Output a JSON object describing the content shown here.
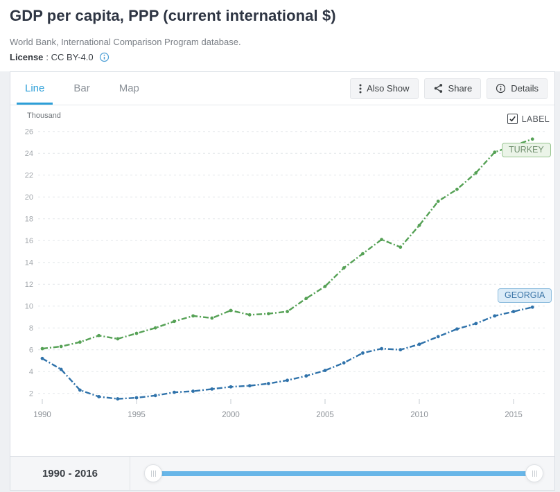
{
  "header": {
    "title": "GDP per capita, PPP (current international $)",
    "source": "World Bank, International Comparison Program database.",
    "license_label": "License",
    "license_value": ": CC BY-4.0"
  },
  "toolbar": {
    "tabs": [
      {
        "label": "Line",
        "active": true
      },
      {
        "label": "Bar",
        "active": false
      },
      {
        "label": "Map",
        "active": false
      }
    ],
    "buttons": [
      {
        "label": "Also Show",
        "icon": "ellipsis-v-icon"
      },
      {
        "label": "Share",
        "icon": "share-icon"
      },
      {
        "label": "Details",
        "icon": "info-icon"
      }
    ]
  },
  "chart": {
    "unit_label": "Thousand",
    "label_toggle": {
      "label": "LABEL",
      "checked": true
    },
    "series_labels": {
      "turkey": "TURKEY",
      "georgia": "GEORGIA"
    }
  },
  "chart_data": {
    "type": "line",
    "title": "GDP per capita, PPP (current international $)",
    "ylabel": "Thousand",
    "x": [
      1990,
      1991,
      1992,
      1993,
      1994,
      1995,
      1996,
      1997,
      1998,
      1999,
      2000,
      2001,
      2002,
      2003,
      2004,
      2005,
      2006,
      2007,
      2008,
      2009,
      2010,
      2011,
      2012,
      2013,
      2014,
      2015,
      2016
    ],
    "series": [
      {
        "name": "TURKEY",
        "color": "#55a155",
        "values": [
          6.1,
          6.3,
          6.7,
          7.3,
          7.0,
          7.5,
          8.0,
          8.6,
          9.1,
          8.9,
          9.6,
          9.2,
          9.3,
          9.5,
          10.7,
          11.8,
          13.5,
          14.8,
          16.1,
          15.4,
          17.4,
          19.6,
          20.7,
          22.2,
          24.1,
          24.7,
          25.3
        ]
      },
      {
        "name": "GEORGIA",
        "color": "#2f72aa",
        "values": [
          5.2,
          4.2,
          2.3,
          1.7,
          1.5,
          1.6,
          1.8,
          2.1,
          2.2,
          2.4,
          2.6,
          2.7,
          2.9,
          3.2,
          3.6,
          4.1,
          4.8,
          5.7,
          6.1,
          6.0,
          6.5,
          7.2,
          7.9,
          8.4,
          9.1,
          9.5,
          9.9
        ]
      }
    ],
    "yticks": [
      2,
      4,
      6,
      8,
      10,
      12,
      14,
      16,
      18,
      20,
      22,
      24,
      26
    ],
    "xticks": [
      1990,
      1995,
      2000,
      2005,
      2010,
      2015
    ],
    "ylim": [
      0,
      27
    ],
    "xlim": [
      1990,
      2016
    ],
    "grid": "horizontal-dashed",
    "legend_position": "inline-labels",
    "line_style": "dash-dot-with-markers"
  },
  "range_slider": {
    "label": "1990 - 2016",
    "min": 1990,
    "max": 2016,
    "track_color": "#68b6e8"
  }
}
